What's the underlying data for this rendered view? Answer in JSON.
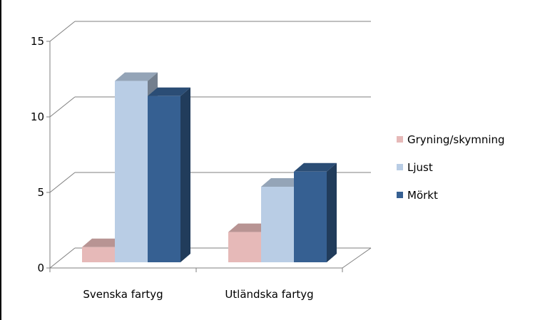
{
  "chart_data": {
    "type": "bar",
    "title": "",
    "xlabel": "",
    "ylabel": "",
    "categories": [
      "Svenska fartyg",
      "Utländska fartyg"
    ],
    "series": [
      {
        "name": "Gryning/skymning",
        "values": [
          1,
          2
        ],
        "color": "#E6B9B8"
      },
      {
        "name": "Ljust",
        "values": [
          12,
          5
        ],
        "color": "#B9CDE5"
      },
      {
        "name": "Mörkt",
        "values": [
          11,
          6
        ],
        "color": "#366092"
      }
    ],
    "ylim": [
      0,
      15
    ],
    "yticks": [
      0,
      5,
      10,
      15
    ],
    "grid": true,
    "legend": "right",
    "three_d": true
  }
}
